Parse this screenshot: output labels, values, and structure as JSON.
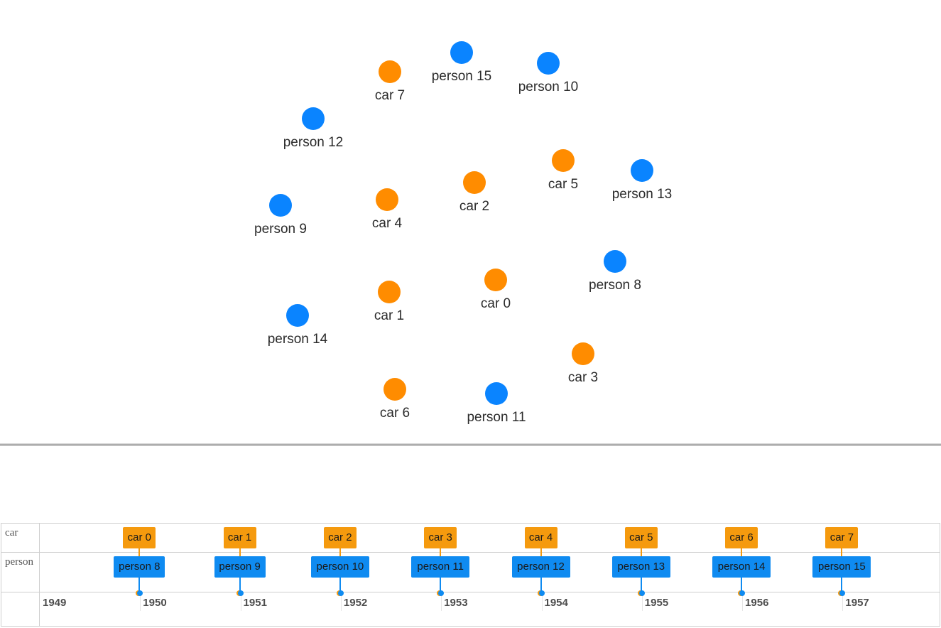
{
  "colors": {
    "car": "#ff8c00",
    "person": "#0a84ff",
    "car_item": "#f59a0e",
    "person_item": "#0f8bf1"
  },
  "graph": {
    "nodes": [
      {
        "id": "car0",
        "label": "car 0",
        "group": "car"
      },
      {
        "id": "car1",
        "label": "car 1",
        "group": "car"
      },
      {
        "id": "car2",
        "label": "car 2",
        "group": "car"
      },
      {
        "id": "car3",
        "label": "car 3",
        "group": "car"
      },
      {
        "id": "car4",
        "label": "car 4",
        "group": "car"
      },
      {
        "id": "car5",
        "label": "car 5",
        "group": "car"
      },
      {
        "id": "car6",
        "label": "car 6",
        "group": "car"
      },
      {
        "id": "car7",
        "label": "car 7",
        "group": "car"
      },
      {
        "id": "person8",
        "label": "person 8",
        "group": "person"
      },
      {
        "id": "person9",
        "label": "person 9",
        "group": "person"
      },
      {
        "id": "person10",
        "label": "person 10",
        "group": "person"
      },
      {
        "id": "person11",
        "label": "person 11",
        "group": "person"
      },
      {
        "id": "person12",
        "label": "person 12",
        "group": "person"
      },
      {
        "id": "person13",
        "label": "person 13",
        "group": "person"
      },
      {
        "id": "person14",
        "label": "person 14",
        "group": "person"
      },
      {
        "id": "person15",
        "label": "person 15",
        "group": "person"
      }
    ]
  },
  "timeline": {
    "groups": [
      "car",
      "person"
    ],
    "years": [
      "1949",
      "1950",
      "1951",
      "1952",
      "1953",
      "1954",
      "1955",
      "1956",
      "1957"
    ],
    "car_items": [
      "car 0",
      "car 1",
      "car 2",
      "car 3",
      "car 4",
      "car 5",
      "car 6",
      "car 7"
    ],
    "person_items": [
      "person 8",
      "person 9",
      "person 10",
      "person 11",
      "person 12",
      "person 13",
      "person 14",
      "person 15"
    ]
  }
}
